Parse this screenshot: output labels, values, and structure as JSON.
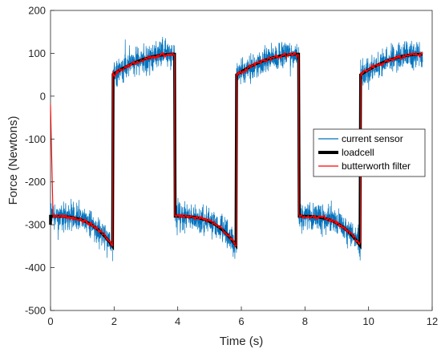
{
  "chart_data": {
    "type": "line",
    "title": "",
    "xlabel": "Time (s)",
    "ylabel": "Force (Newtons)",
    "xlim": [
      0,
      12
    ],
    "ylim": [
      -500,
      200
    ],
    "xticks": [
      0,
      2,
      4,
      6,
      8,
      10,
      12
    ],
    "xtick_labels": [
      "0",
      "2",
      "4",
      "6",
      "8",
      "10",
      "12"
    ],
    "yticks": [
      -500,
      -400,
      -300,
      -200,
      -100,
      0,
      100,
      200
    ],
    "ytick_labels": [
      "-500",
      "-400",
      "-300",
      "-200",
      "-100",
      "0",
      "100",
      "200"
    ],
    "grid": false,
    "legend_position": "right",
    "square_wave": {
      "segments": [
        {
          "t_start": 0.0,
          "t_end": 1.95,
          "level": "low"
        },
        {
          "t_start": 1.95,
          "t_end": 3.9,
          "level": "high"
        },
        {
          "t_start": 3.9,
          "t_end": 5.85,
          "level": "low"
        },
        {
          "t_start": 5.85,
          "t_end": 7.8,
          "level": "high"
        },
        {
          "t_start": 7.8,
          "t_end": 9.75,
          "level": "low"
        },
        {
          "t_start": 9.75,
          "t_end": 11.7,
          "level": "high"
        }
      ],
      "low_start": -280,
      "low_end": -350,
      "high_start": 50,
      "high_end": 98,
      "initial_value": -300
    },
    "series": [
      {
        "name": "current sensor",
        "color": "#0072BD",
        "style": "noisy-line",
        "noise_amplitude": 22
      },
      {
        "name": "loadcell",
        "color": "#000000",
        "style": "thick-line"
      },
      {
        "name": "butterworth filter",
        "color": "#FF0000",
        "style": "line",
        "initial_value": -20
      }
    ]
  }
}
